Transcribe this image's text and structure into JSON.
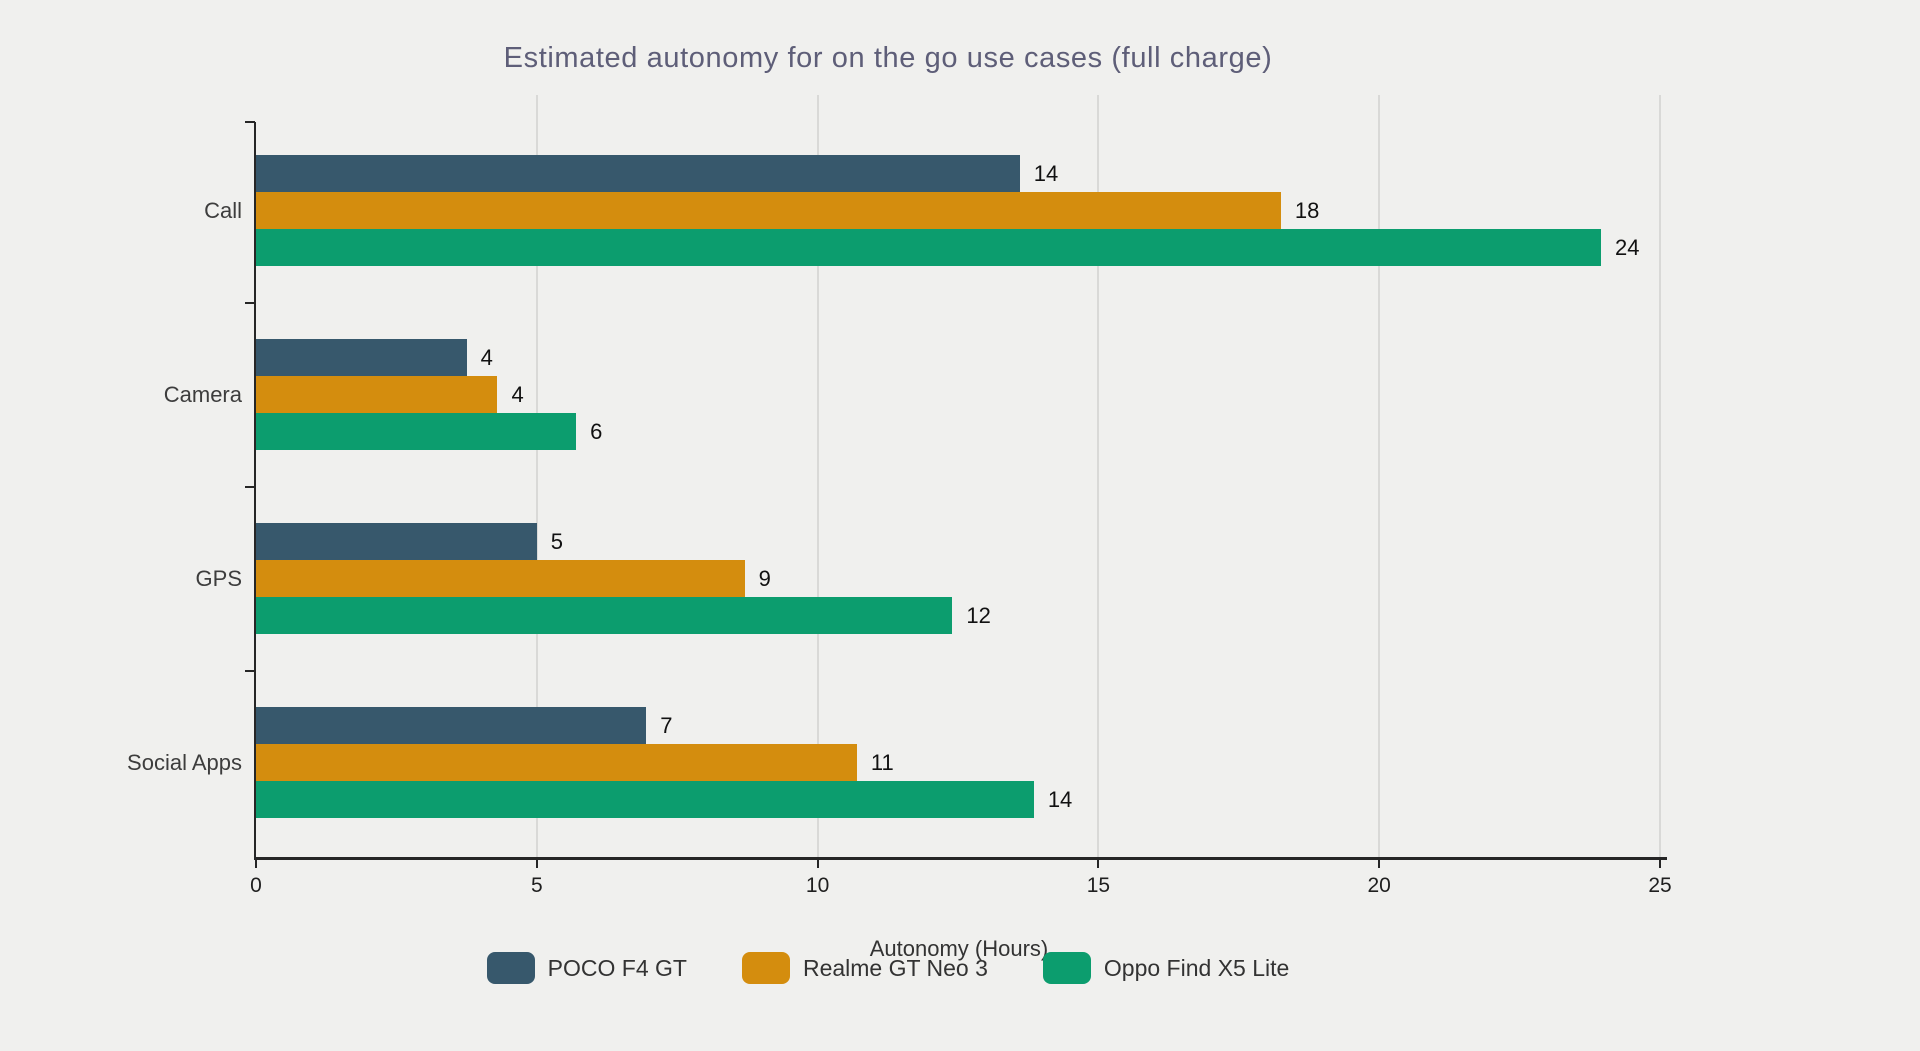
{
  "chart_data": {
    "type": "bar",
    "orientation": "horizontal",
    "title": "Estimated autonomy for on the go use cases (full charge)",
    "xlabel": "Autonomy (Hours)",
    "xlim": [
      0,
      25
    ],
    "xticks": [
      0,
      5,
      10,
      15,
      20,
      25
    ],
    "grid": "vertical",
    "legend_position": "bottom",
    "categories": [
      "Call",
      "Camera",
      "GPS",
      "Social Apps"
    ],
    "series": [
      {
        "name": "POCO F4 GT",
        "color": "#37586c",
        "values": [
          14,
          4,
          5,
          7
        ],
        "bar_lengths_hours": [
          13.6,
          3.75,
          5.0,
          6.95
        ]
      },
      {
        "name": "Realme GT Neo 3",
        "color": "#d48d0e",
        "values": [
          18,
          4,
          9,
          11
        ],
        "bar_lengths_hours": [
          18.25,
          4.3,
          8.7,
          10.7
        ]
      },
      {
        "name": "Oppo Find X5 Lite",
        "color": "#0c9d6e",
        "values": [
          24,
          6,
          12,
          14
        ],
        "bar_lengths_hours": [
          23.95,
          5.7,
          12.4,
          13.85
        ]
      }
    ]
  },
  "style": {
    "background": "#f0f0ee",
    "title_color": "#5e5e78",
    "axis_color": "#262626",
    "gridline_color": "#d9d9d7",
    "label_color": "#3d3d3d",
    "value_color": "#111111"
  }
}
